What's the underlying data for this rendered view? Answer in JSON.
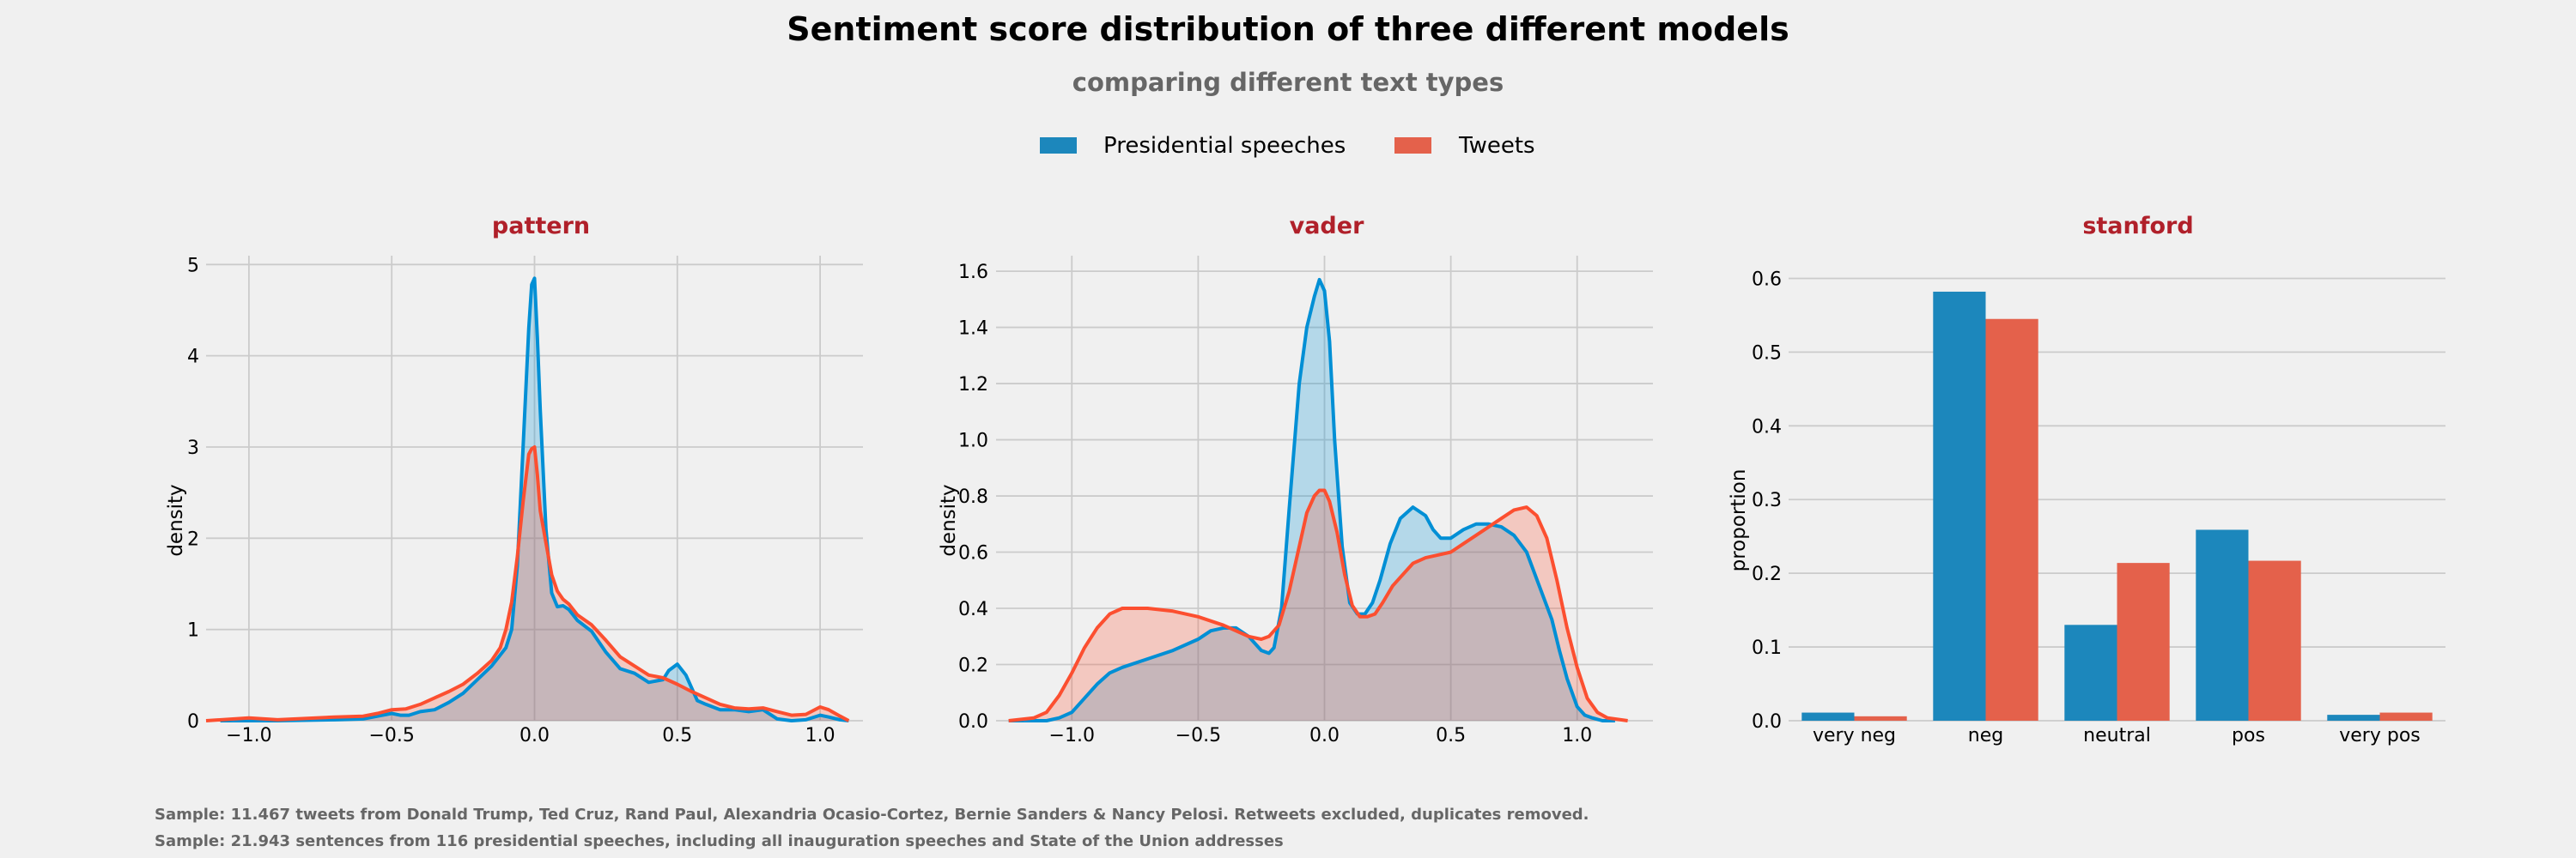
{
  "figure": {
    "title": "Sentiment score distribution of three different models",
    "subtitle": "comparing different text types",
    "legend": [
      {
        "label": "Presidential speeches",
        "color": "#1c87bc"
      },
      {
        "label": "Tweets",
        "color": "#e4614b"
      }
    ],
    "footnotes": [
      "Sample: 11.467 tweets from Donald Trump, Ted Cruz, Rand Paul, Alexandria Ocasio-Cortez, Bernie Sanders & Nancy Pelosi. Retweets excluded, duplicates removed.",
      "Sample: 21.943 sentences from 116 presidential speeches, including all inauguration speeches and State of the Union addresses"
    ],
    "colors": {
      "background": "#f0f0f0",
      "panel_title": "#b0202a",
      "speeches_line": "#008fd5",
      "tweets_line": "#fc4f30",
      "speeches_bar": "#1c87bc",
      "tweets_bar": "#e4614b",
      "footnote": "#666666"
    }
  },
  "chart_data": [
    {
      "type": "area",
      "title": "pattern",
      "xlabel": "",
      "ylabel": "density",
      "xlim": [
        -1.15,
        1.15
      ],
      "ylim": [
        0,
        5.05
      ],
      "xticks": [
        -1.0,
        -0.5,
        0.0,
        0.5,
        1.0
      ],
      "xtick_labels": [
        "−1.0",
        "−0.5",
        "0.0",
        "0.5",
        "1.0"
      ],
      "yticks": [
        0,
        1,
        2,
        3,
        4,
        5
      ],
      "ytick_labels": [
        "0",
        "1",
        "2",
        "3",
        "4",
        "5"
      ],
      "grid": true,
      "series": [
        {
          "name": "Presidential speeches",
          "x": [
            -1.1,
            -0.9,
            -0.7,
            -0.6,
            -0.55,
            -0.5,
            -0.47,
            -0.44,
            -0.4,
            -0.35,
            -0.3,
            -0.25,
            -0.2,
            -0.15,
            -0.1,
            -0.08,
            -0.06,
            -0.04,
            -0.02,
            -0.01,
            0.0,
            0.01,
            0.02,
            0.04,
            0.06,
            0.08,
            0.1,
            0.12,
            0.15,
            0.2,
            0.25,
            0.3,
            0.35,
            0.4,
            0.45,
            0.47,
            0.5,
            0.53,
            0.57,
            0.6,
            0.65,
            0.7,
            0.75,
            0.8,
            0.85,
            0.9,
            0.95,
            1.0,
            1.03,
            1.07,
            1.1
          ],
          "y": [
            0,
            0,
            0.01,
            0.02,
            0.05,
            0.08,
            0.06,
            0.06,
            0.1,
            0.12,
            0.2,
            0.3,
            0.45,
            0.6,
            0.8,
            1.0,
            1.7,
            3.0,
            4.3,
            4.78,
            4.85,
            4.2,
            3.4,
            2.1,
            1.4,
            1.25,
            1.26,
            1.22,
            1.1,
            0.98,
            0.75,
            0.57,
            0.52,
            0.42,
            0.45,
            0.55,
            0.62,
            0.5,
            0.22,
            0.18,
            0.12,
            0.12,
            0.1,
            0.12,
            0.02,
            0.0,
            0.01,
            0.06,
            0.04,
            0.01,
            0
          ]
        },
        {
          "name": "Tweets",
          "x": [
            -1.15,
            -1.0,
            -0.9,
            -0.7,
            -0.6,
            -0.55,
            -0.5,
            -0.45,
            -0.4,
            -0.35,
            -0.3,
            -0.25,
            -0.2,
            -0.15,
            -0.12,
            -0.1,
            -0.08,
            -0.06,
            -0.04,
            -0.02,
            -0.01,
            0.0,
            0.01,
            0.02,
            0.04,
            0.06,
            0.08,
            0.1,
            0.12,
            0.15,
            0.2,
            0.25,
            0.3,
            0.35,
            0.4,
            0.45,
            0.5,
            0.55,
            0.6,
            0.65,
            0.7,
            0.75,
            0.8,
            0.85,
            0.9,
            0.95,
            1.0,
            1.03,
            1.07,
            1.1
          ],
          "y": [
            0,
            0.03,
            0.01,
            0.04,
            0.05,
            0.08,
            0.12,
            0.13,
            0.18,
            0.25,
            0.32,
            0.4,
            0.52,
            0.66,
            0.8,
            1.0,
            1.3,
            1.8,
            2.4,
            2.92,
            2.98,
            3.0,
            2.7,
            2.3,
            1.95,
            1.6,
            1.42,
            1.33,
            1.28,
            1.16,
            1.05,
            0.88,
            0.7,
            0.6,
            0.5,
            0.47,
            0.4,
            0.32,
            0.25,
            0.18,
            0.14,
            0.13,
            0.14,
            0.1,
            0.06,
            0.07,
            0.15,
            0.12,
            0.05,
            0
          ]
        }
      ]
    },
    {
      "type": "area",
      "title": "vader",
      "xlabel": "",
      "ylabel": "density",
      "xlim": [
        -1.3,
        1.3
      ],
      "ylim": [
        0,
        1.64
      ],
      "xticks": [
        -1.0,
        -0.5,
        0.0,
        0.5,
        1.0
      ],
      "xtick_labels": [
        "−1.0",
        "−0.5",
        "0.0",
        "0.5",
        "1.0"
      ],
      "yticks": [
        0.0,
        0.2,
        0.4,
        0.6,
        0.8,
        1.0,
        1.2,
        1.4,
        1.6
      ],
      "ytick_labels": [
        "0.0",
        "0.2",
        "0.4",
        "0.6",
        "0.8",
        "1.0",
        "1.2",
        "1.4",
        "1.6"
      ],
      "grid": true,
      "series": [
        {
          "name": "Presidential speeches",
          "x": [
            -1.25,
            -1.1,
            -1.05,
            -1.0,
            -0.95,
            -0.9,
            -0.85,
            -0.8,
            -0.7,
            -0.6,
            -0.5,
            -0.45,
            -0.4,
            -0.35,
            -0.3,
            -0.25,
            -0.22,
            -0.2,
            -0.17,
            -0.14,
            -0.1,
            -0.07,
            -0.04,
            -0.02,
            0.0,
            0.02,
            0.04,
            0.07,
            0.1,
            0.13,
            0.16,
            0.19,
            0.22,
            0.26,
            0.3,
            0.35,
            0.4,
            0.43,
            0.46,
            0.5,
            0.55,
            0.6,
            0.65,
            0.7,
            0.75,
            0.8,
            0.85,
            0.9,
            0.93,
            0.96,
            1.0,
            1.03,
            1.06,
            1.1,
            1.15
          ],
          "y": [
            0,
            0,
            0.01,
            0.03,
            0.08,
            0.13,
            0.17,
            0.19,
            0.22,
            0.25,
            0.29,
            0.32,
            0.33,
            0.33,
            0.3,
            0.25,
            0.24,
            0.26,
            0.4,
            0.75,
            1.2,
            1.4,
            1.51,
            1.57,
            1.53,
            1.35,
            1.0,
            0.62,
            0.42,
            0.38,
            0.38,
            0.42,
            0.5,
            0.63,
            0.72,
            0.76,
            0.73,
            0.68,
            0.65,
            0.65,
            0.68,
            0.7,
            0.7,
            0.69,
            0.66,
            0.6,
            0.48,
            0.36,
            0.25,
            0.15,
            0.05,
            0.02,
            0.01,
            0,
            0
          ]
        },
        {
          "name": "Tweets",
          "x": [
            -1.25,
            -1.15,
            -1.1,
            -1.05,
            -1.0,
            -0.95,
            -0.9,
            -0.85,
            -0.8,
            -0.75,
            -0.7,
            -0.6,
            -0.5,
            -0.4,
            -0.3,
            -0.25,
            -0.22,
            -0.18,
            -0.14,
            -0.1,
            -0.07,
            -0.04,
            -0.02,
            0.0,
            0.02,
            0.05,
            0.08,
            0.11,
            0.14,
            0.17,
            0.2,
            0.23,
            0.27,
            0.31,
            0.35,
            0.4,
            0.45,
            0.5,
            0.55,
            0.6,
            0.65,
            0.7,
            0.75,
            0.8,
            0.84,
            0.88,
            0.92,
            0.96,
            1.0,
            1.04,
            1.08,
            1.12,
            1.2
          ],
          "y": [
            0,
            0.01,
            0.03,
            0.09,
            0.17,
            0.26,
            0.33,
            0.38,
            0.4,
            0.4,
            0.4,
            0.39,
            0.37,
            0.34,
            0.3,
            0.29,
            0.3,
            0.34,
            0.46,
            0.62,
            0.74,
            0.8,
            0.82,
            0.82,
            0.78,
            0.67,
            0.52,
            0.41,
            0.37,
            0.37,
            0.38,
            0.42,
            0.48,
            0.52,
            0.56,
            0.58,
            0.59,
            0.6,
            0.63,
            0.66,
            0.69,
            0.72,
            0.75,
            0.76,
            0.73,
            0.65,
            0.5,
            0.33,
            0.19,
            0.08,
            0.03,
            0.01,
            0
          ]
        }
      ]
    },
    {
      "type": "bar",
      "title": "stanford",
      "xlabel": "",
      "ylabel": "proportion",
      "categories": [
        "very neg",
        "neg",
        "neutral",
        "pos",
        "very pos"
      ],
      "ylim": [
        0,
        0.625
      ],
      "yticks": [
        0.0,
        0.1,
        0.2,
        0.3,
        0.4,
        0.5,
        0.6
      ],
      "ytick_labels": [
        "0.0",
        "0.1",
        "0.2",
        "0.3",
        "0.4",
        "0.5",
        "0.6"
      ],
      "grid": true,
      "series": [
        {
          "name": "Presidential speeches",
          "values": [
            0.011,
            0.582,
            0.13,
            0.259,
            0.008
          ]
        },
        {
          "name": "Tweets",
          "values": [
            0.006,
            0.545,
            0.214,
            0.217,
            0.011
          ]
        }
      ]
    }
  ]
}
